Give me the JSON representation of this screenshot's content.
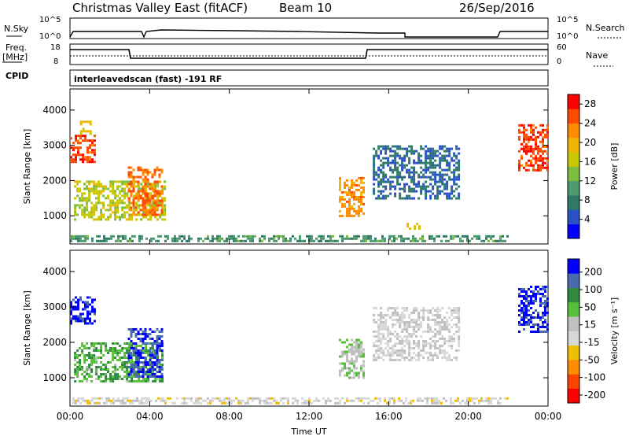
{
  "header": {
    "station": "Christmas Valley East (fitACF)",
    "beam": "Beam 10",
    "date": "26/Sep/2016"
  },
  "top_panels": {
    "nsky_label": "N.Sky",
    "nsearch_label": "N.Search",
    "nsky_scale": [
      "10^5",
      "10^0"
    ],
    "nsearch_scale": [
      "10^5",
      "10^0"
    ],
    "freq_label_1": "Freq.",
    "freq_label_2": "[MHz]",
    "freq_scale": [
      "18",
      "8"
    ],
    "nave_label": "Nave",
    "nave_scale": [
      "60",
      "0"
    ],
    "cpid_label": "CPID",
    "cpid_text": "interleavedscan (fast) -191 RF"
  },
  "colors": {
    "power": [
      "#0000ff",
      "#2a52c6",
      "#2f7a66",
      "#4c9a6e",
      "#7dbc3c",
      "#c8c800",
      "#f0b400",
      "#ff8c00",
      "#ff4a00",
      "#ff0000"
    ],
    "velocity": [
      "#0000ff",
      "#4a6ab0",
      "#2e8a3e",
      "#57c03a",
      "#c0c0c0",
      "#d8d8d8",
      "#f0c000",
      "#ff8c00",
      "#ff4400",
      "#ff0000"
    ]
  },
  "chart_data": [
    {
      "type": "heatmap",
      "title": "Power",
      "xlabel": "Time UT",
      "ylabel": "Slant Range [km]",
      "x_ticks": [
        "00:00",
        "04:00",
        "08:00",
        "12:00",
        "16:00",
        "20:00",
        "00:00"
      ],
      "y_ticks": [
        1000,
        2000,
        3000,
        4000
      ],
      "ylim": [
        200,
        4600
      ],
      "xlim_hours": [
        0,
        24
      ],
      "colorbar": {
        "label": "Power [dB]",
        "ticks": [
          "4",
          "8",
          "12",
          "16",
          "20",
          "24",
          "28"
        ],
        "range": [
          0,
          30
        ]
      },
      "regions": [
        {
          "t": [
            0.0,
            1.2
          ],
          "r": [
            2500,
            3300
          ],
          "value": 26
        },
        {
          "t": [
            0.5,
            1.0
          ],
          "r": [
            3300,
            3700
          ],
          "value": 18
        },
        {
          "t": [
            0.2,
            4.8
          ],
          "r": [
            900,
            2000
          ],
          "value": 16
        },
        {
          "t": [
            2.9,
            4.6
          ],
          "r": [
            1000,
            2400
          ],
          "value": 24
        },
        {
          "t": [
            13.5,
            14.7
          ],
          "r": [
            1000,
            2100
          ],
          "value": 22
        },
        {
          "t": [
            15.2,
            19.5
          ],
          "r": [
            1500,
            3000
          ],
          "value": 6
        },
        {
          "t": [
            22.5,
            24.0
          ],
          "r": [
            2300,
            3600
          ],
          "value": 26
        },
        {
          "t": [
            16.9,
            17.5
          ],
          "r": [
            600,
            800
          ],
          "value": 18
        },
        {
          "t": [
            0.0,
            22.0
          ],
          "r": [
            250,
            450
          ],
          "value": 10
        }
      ]
    },
    {
      "type": "heatmap",
      "title": "Velocity",
      "xlabel": "Time UT",
      "ylabel": "Slant Range [km]",
      "x_ticks": [
        "00:00",
        "04:00",
        "08:00",
        "12:00",
        "16:00",
        "20:00",
        "00:00"
      ],
      "y_ticks": [
        1000,
        2000,
        3000,
        4000
      ],
      "ylim": [
        200,
        4600
      ],
      "xlim_hours": [
        0,
        24
      ],
      "colorbar": {
        "label": "Velocity [m s⁻¹]",
        "ticks": [
          "200",
          "100",
          "50",
          "15",
          "-15",
          "-50",
          "-100",
          "-200"
        ],
        "range": [
          -250,
          250
        ]
      },
      "regions": [
        {
          "t": [
            0.0,
            1.2
          ],
          "r": [
            2500,
            3300
          ],
          "value": 220
        },
        {
          "t": [
            0.2,
            4.6
          ],
          "r": [
            900,
            2000
          ],
          "value": 90
        },
        {
          "t": [
            2.9,
            4.6
          ],
          "r": [
            1000,
            2400
          ],
          "value": 200
        },
        {
          "t": [
            13.5,
            14.7
          ],
          "r": [
            1000,
            2100
          ],
          "value": 40
        },
        {
          "t": [
            15.2,
            19.5
          ],
          "r": [
            1500,
            3000
          ],
          "value": 0
        },
        {
          "t": [
            22.5,
            24.0
          ],
          "r": [
            2300,
            3600
          ],
          "value": 210
        },
        {
          "t": [
            0.0,
            22.0
          ],
          "r": [
            250,
            450
          ],
          "value": -20
        }
      ]
    }
  ]
}
